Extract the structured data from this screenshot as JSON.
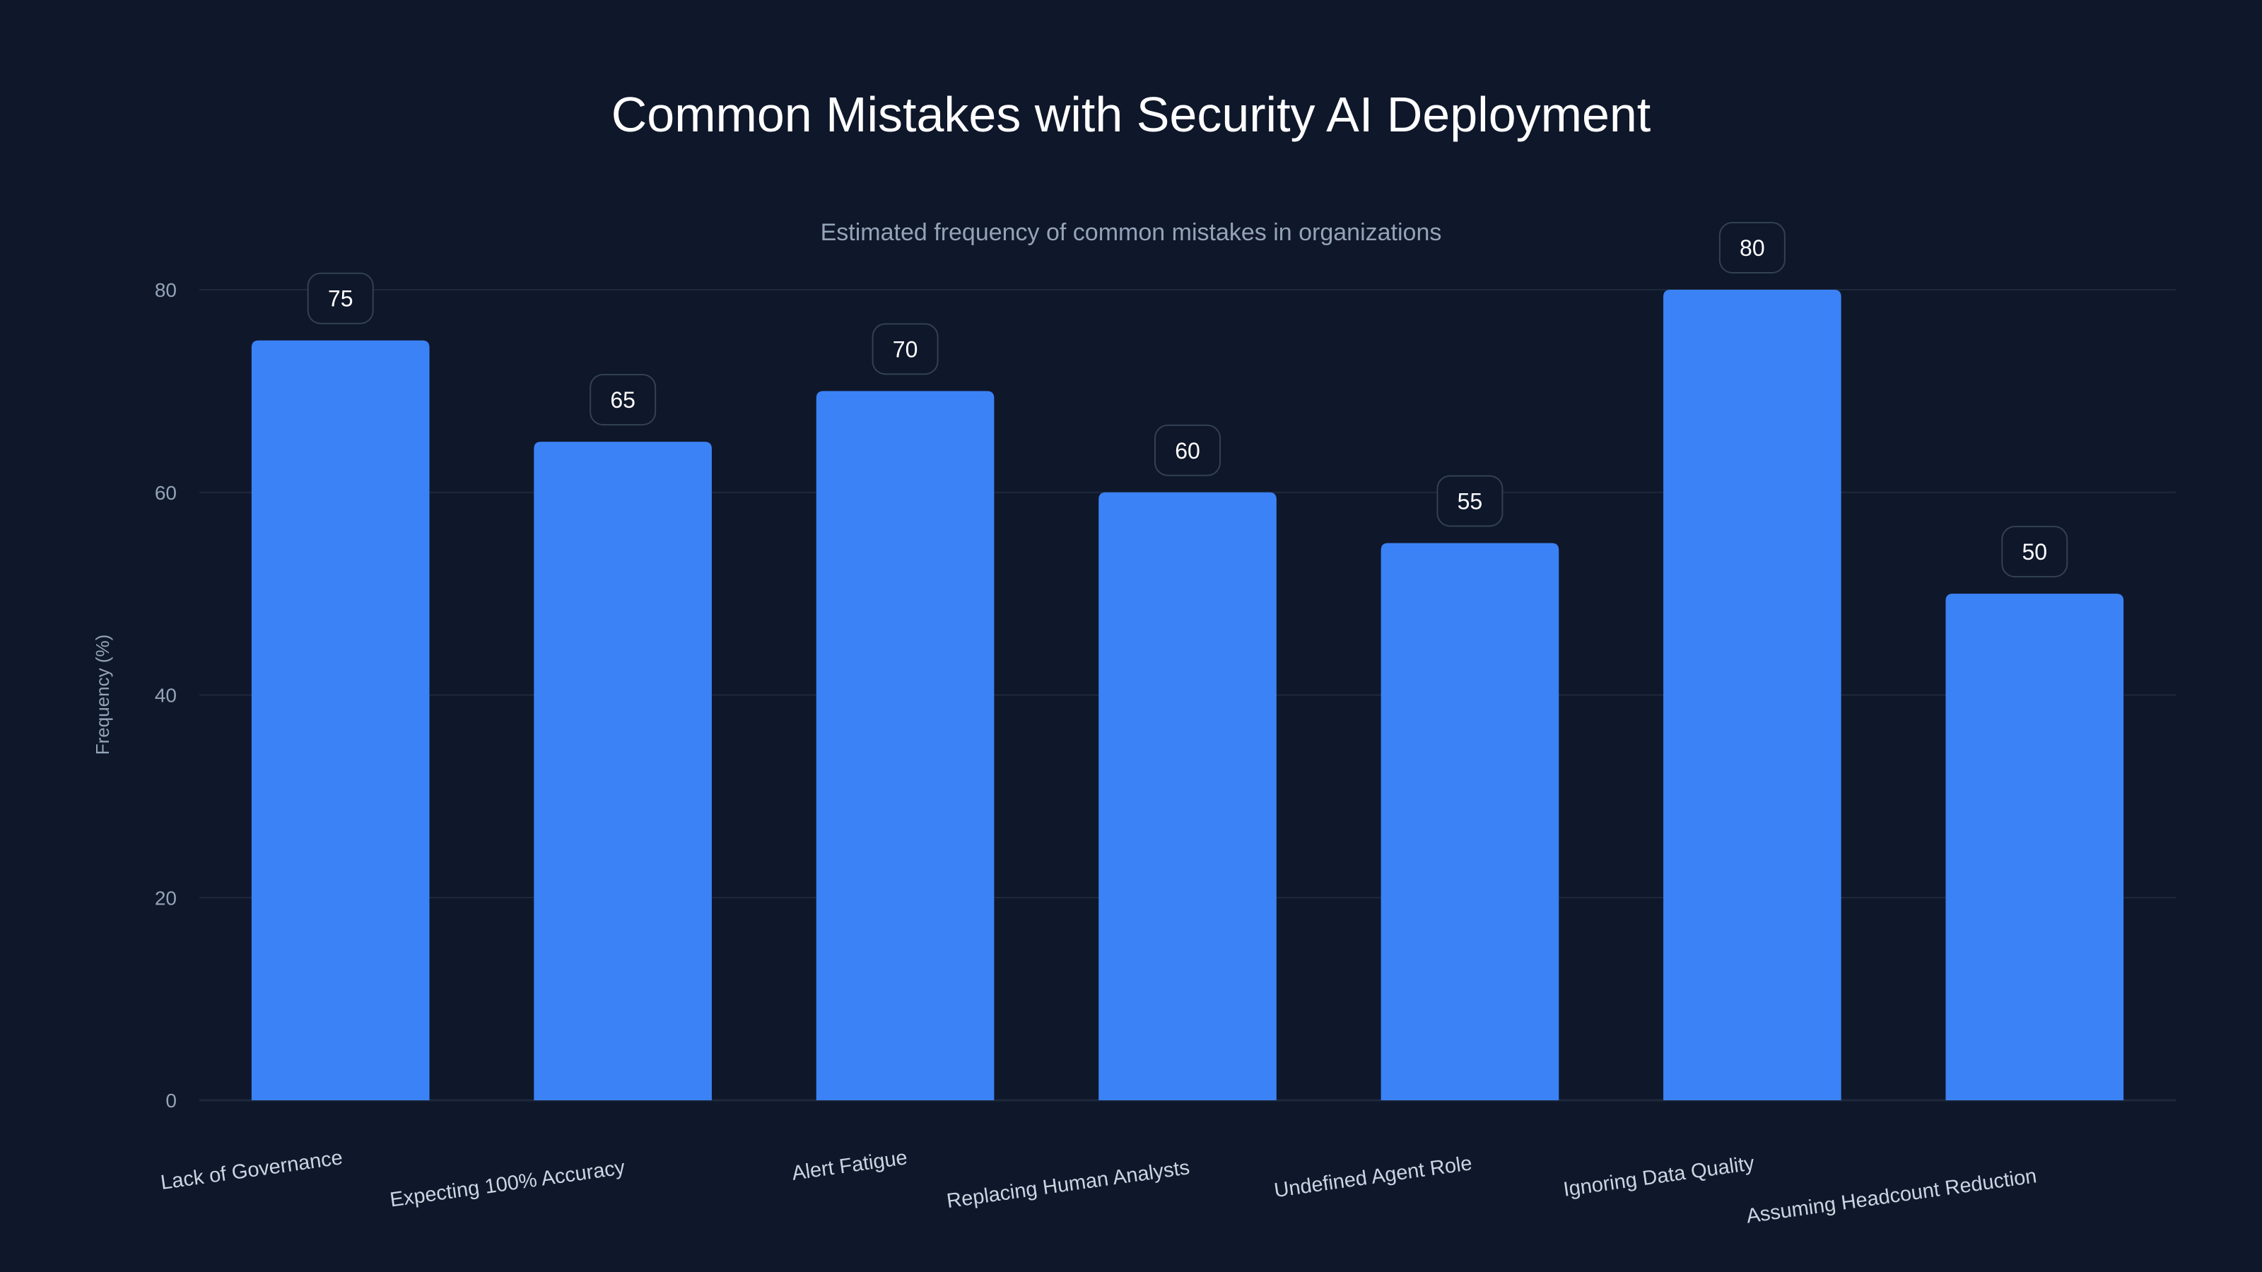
{
  "chart_data": {
    "type": "bar",
    "title": "Common Mistakes with Security AI Deployment",
    "subtitle": "Estimated frequency of common mistakes in organizations",
    "xlabel": "",
    "ylabel": "Frequency (%)",
    "ylim": [
      0,
      80
    ],
    "yticks": [
      0,
      20,
      40,
      60,
      80
    ],
    "grid": true,
    "categories": [
      "Lack of Governance",
      "Expecting 100% Accuracy",
      "Alert Fatigue",
      "Replacing Human Analysts",
      "Undefined Agent Role",
      "Ignoring Data Quality",
      "Assuming Headcount Reduction"
    ],
    "values": [
      75,
      65,
      70,
      60,
      55,
      80,
      50
    ],
    "data_labels": [
      "75",
      "65",
      "70",
      "60",
      "55",
      "80",
      "50"
    ],
    "colors": {
      "background": "#0f172a",
      "bar": "#3b82f6",
      "grid": "#1e293b",
      "label_border": "#334155"
    }
  }
}
